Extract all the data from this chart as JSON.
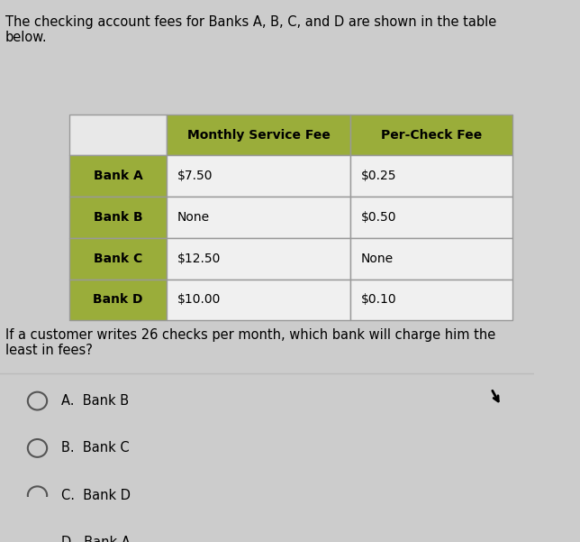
{
  "title_text": "The checking account fees for Banks A, B, C, and D are shown in the table\nbelow.",
  "question_text": "If a customer writes 26 checks per month, which bank will charge him the\nleast in fees?",
  "col_headers": [
    "",
    "Monthly Service Fee",
    "Per-Check Fee"
  ],
  "rows": [
    [
      "Bank A",
      "$7.50",
      "$0.25"
    ],
    [
      "Bank B",
      "None",
      "$0.50"
    ],
    [
      "Bank C",
      "$12.50",
      "None"
    ],
    [
      "Bank D",
      "$10.00",
      "$0.10"
    ]
  ],
  "answer_options": [
    "A.  Bank B",
    "B.  Bank C",
    "C.  Bank D",
    "D.  Bank A"
  ],
  "header_bg": "#9aad3a",
  "row_label_bg": "#9aad3a",
  "cell_bg": "#f0f0f0",
  "empty_cell_bg": "#e8e8e8",
  "border_color": "#999999",
  "bg_color": "#cccccc",
  "title_fontsize": 10.5,
  "question_fontsize": 10.5,
  "answer_fontsize": 10.5,
  "table_header_fontsize": 10,
  "table_cell_fontsize": 10
}
